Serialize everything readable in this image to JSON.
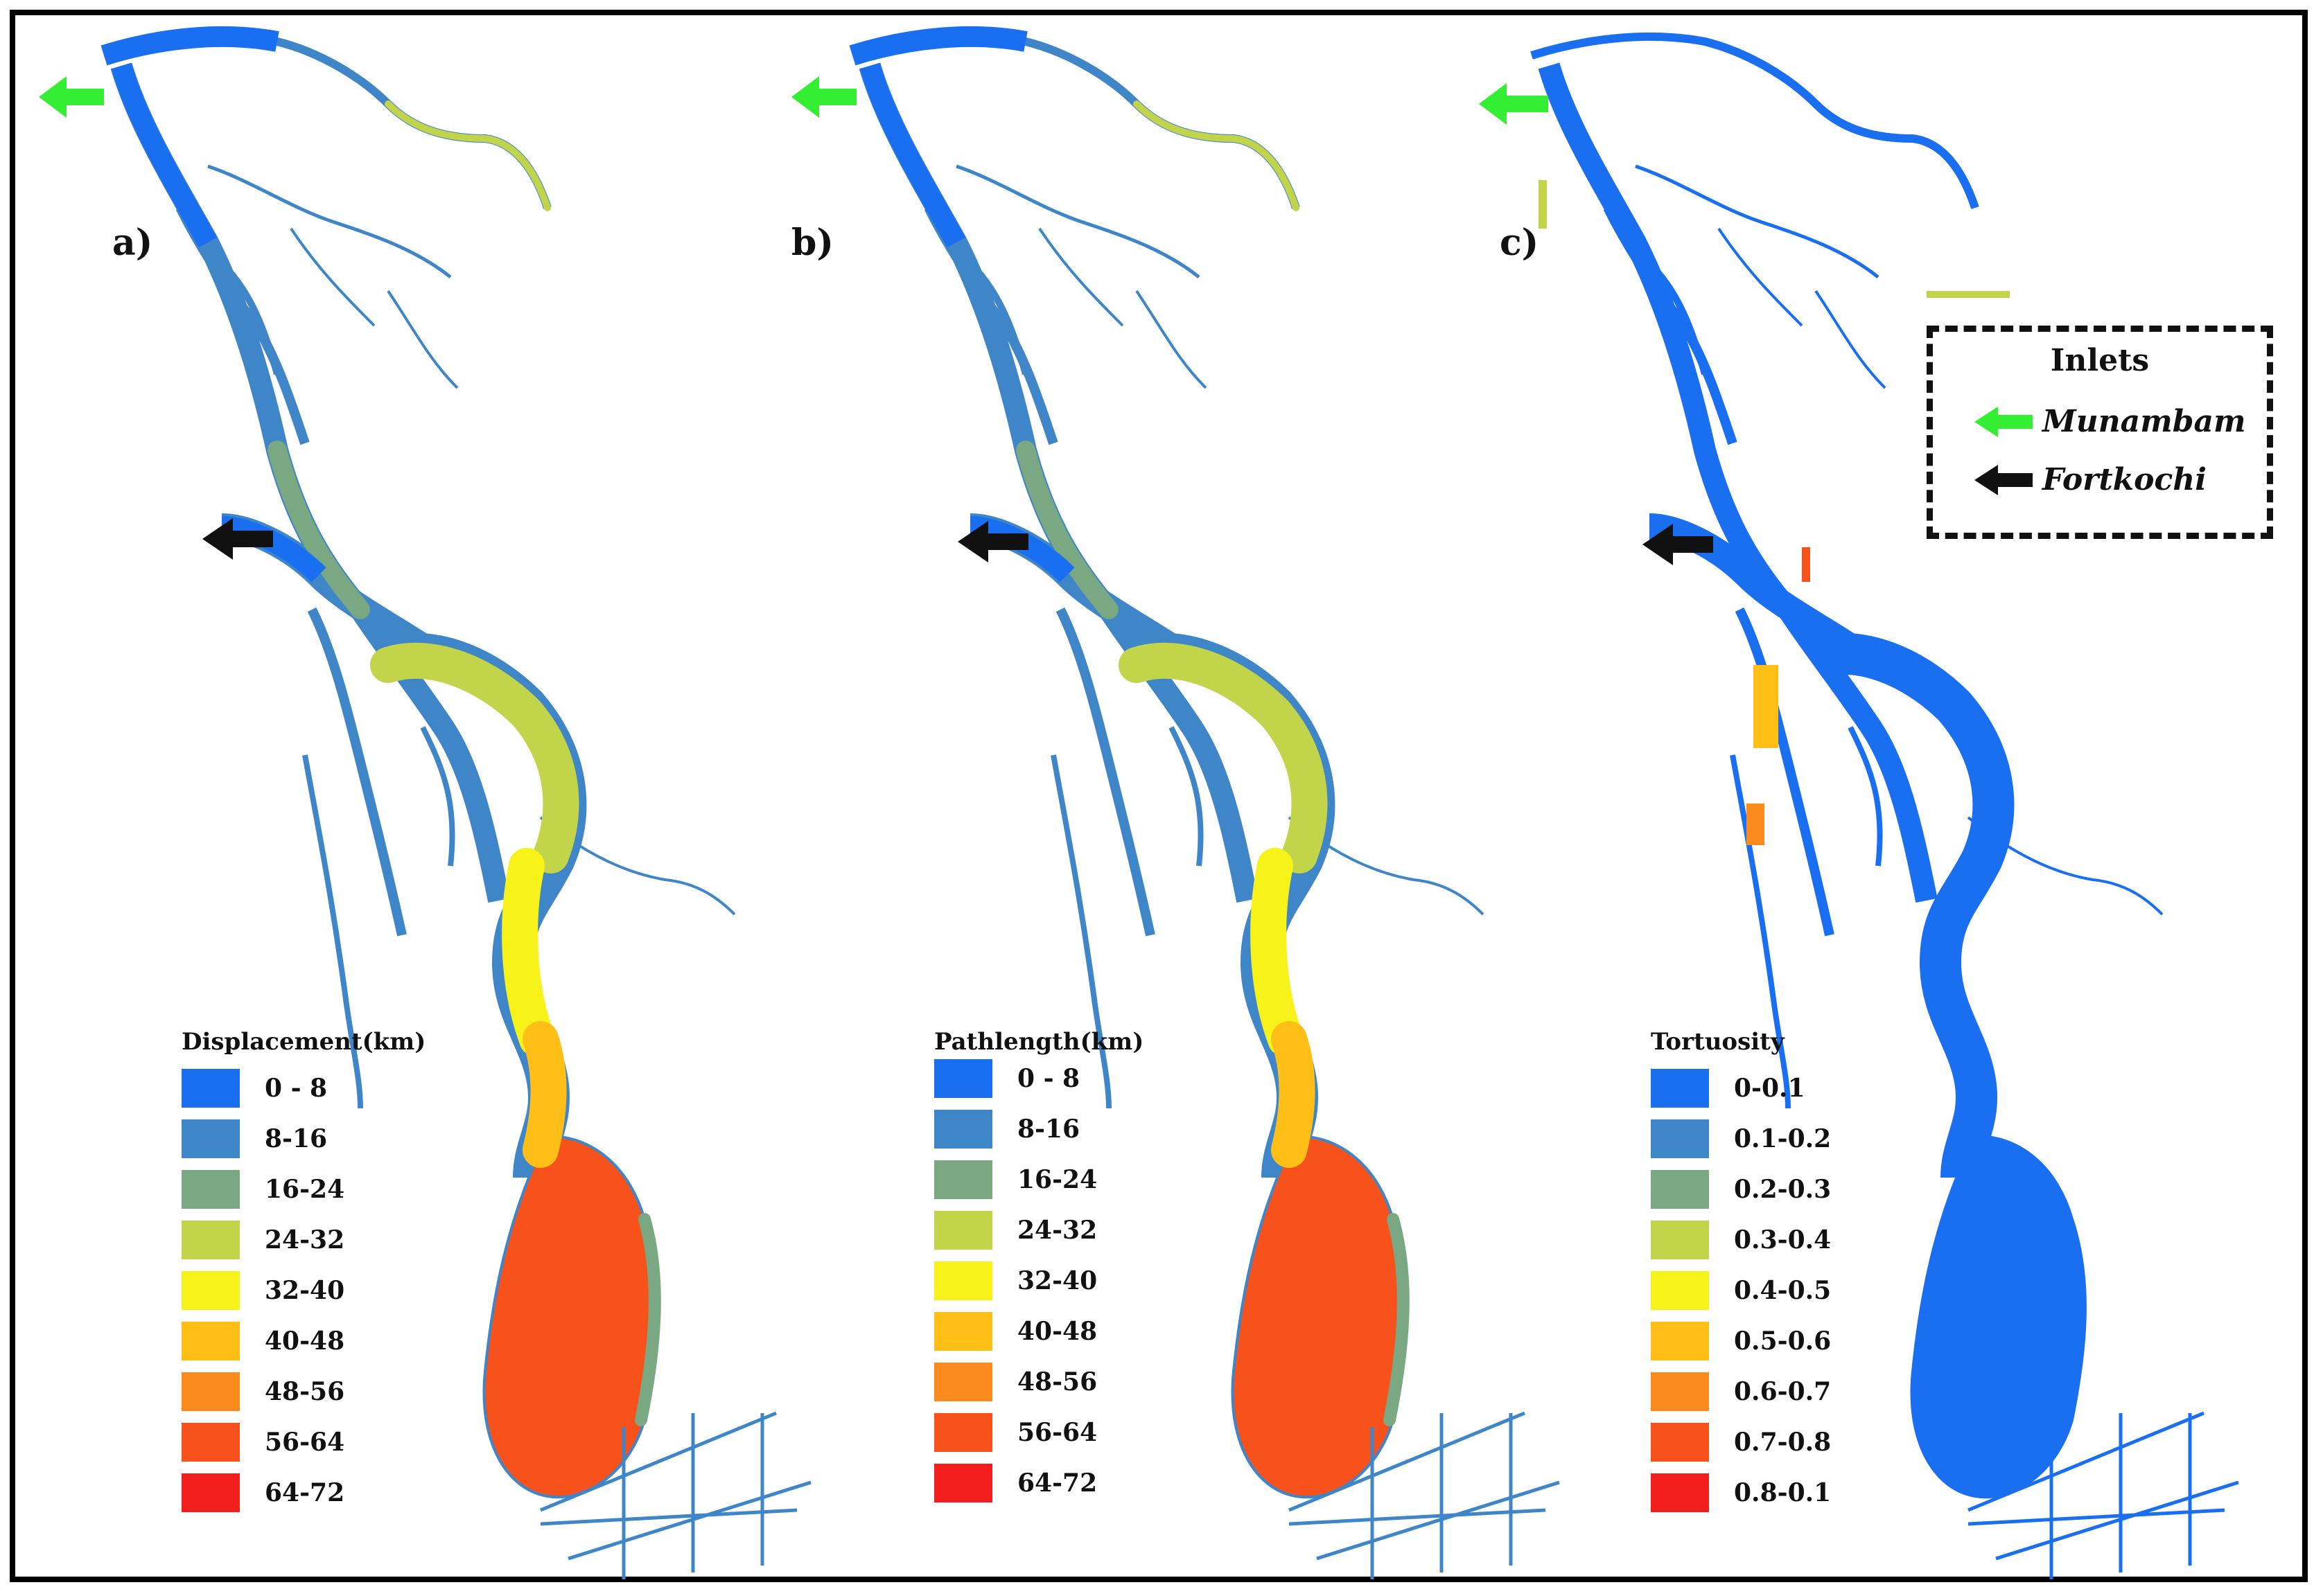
{
  "panels": [
    {
      "label": "a)",
      "legend_title": "Displacement(km)",
      "mode": "displacement",
      "classes": [
        "0 - 8",
        "8-16",
        "16-24",
        "24-32",
        "32-40",
        "40-48",
        "48-56",
        "56-64",
        "64-72"
      ]
    },
    {
      "label": "b)",
      "legend_title": "Pathlength(km)",
      "mode": "pathlength",
      "classes": [
        "0 - 8",
        "8-16",
        "16-24",
        "24-32",
        "32-40",
        "40-48",
        "48-56",
        "56-64",
        "64-72"
      ]
    },
    {
      "label": "c)",
      "legend_title": "Tortuosity",
      "mode": "tortuosity",
      "classes": [
        "0-0.1",
        "0.1-0.2",
        "0.2-0.3",
        "0.3-0.4",
        "0.4-0.5",
        "0.5-0.6",
        "0.6-0.7",
        "0.7-0.8",
        "0.8-0.1"
      ]
    }
  ],
  "class_colors": [
    "#1a6ff0",
    "#3f86c8",
    "#7aa882",
    "#c2d54a",
    "#f7f21a",
    "#ffbf17",
    "#fb8a1e",
    "#f8521c",
    "#f21e1e"
  ],
  "inlets": {
    "title": "Inlets",
    "items": [
      {
        "name": "Munambam",
        "color": "#33ee33"
      },
      {
        "name": "Fortkochi",
        "color": "#111111"
      }
    ]
  }
}
